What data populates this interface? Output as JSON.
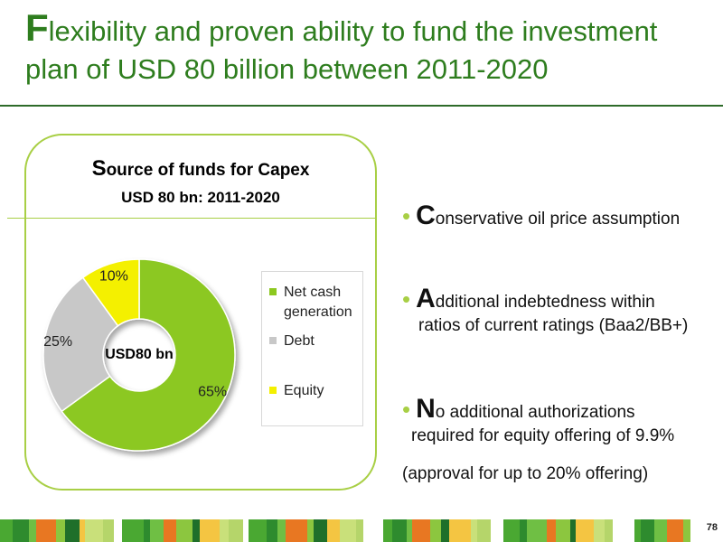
{
  "title": {
    "first_letter": "F",
    "line1_rest": "lexibility and proven ability to fund the investment",
    "line2": "plan of USD 80 billion between 2011-2020"
  },
  "panel": {
    "heading_first": "S",
    "heading_rest": "ource of funds for Capex",
    "subheading": "USD 80 bn: 2011-2020"
  },
  "chart_data": {
    "type": "pie",
    "variant": "donut",
    "title": "Source of funds for Capex",
    "subtitle": "USD 80 bn: 2011-2020",
    "center_label": "USD80 bn",
    "categories": [
      "Net cash generation",
      "Debt",
      "Equity"
    ],
    "values": [
      65,
      25,
      10
    ],
    "value_labels": [
      "65%",
      "25%",
      "10%"
    ],
    "colors": [
      "#8cc820",
      "#c8c8c8",
      "#f4f000"
    ],
    "legend_position": "right"
  },
  "legend": {
    "items": [
      {
        "line1": "Net cash",
        "line2": "generation"
      },
      {
        "line1": "Debt",
        "line2": ""
      },
      {
        "line1": "Equity",
        "line2": ""
      }
    ]
  },
  "bullets": [
    {
      "cap": "C",
      "rest": "onservative oil price assumption",
      "line2": ""
    },
    {
      "cap": "A",
      "rest": "dditional indebtedness within",
      "line2": "ratios of current ratings (Baa2/BB+)"
    },
    {
      "cap": "N",
      "rest": "o additional authorizations",
      "line2": "required for equity offering of 9.9%"
    }
  ],
  "note": "(approval for up to 20% offering)",
  "page_number": "78",
  "colors": {
    "title_green": "#2e7d1e",
    "panel_border": "#a8cf45",
    "bullet_dot": "#a8cf45"
  }
}
